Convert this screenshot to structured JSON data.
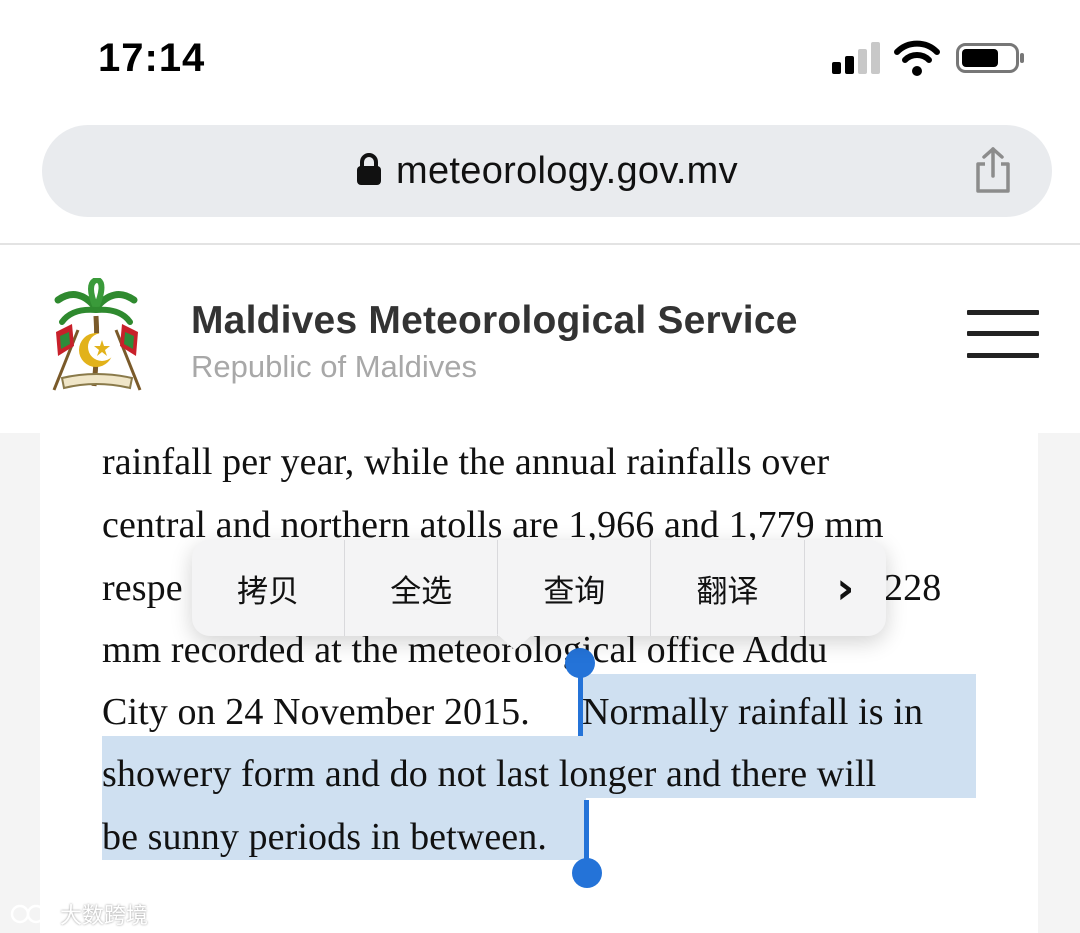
{
  "status_bar": {
    "time": "17:14",
    "icons": [
      "signal-icon",
      "wifi-icon",
      "battery-icon"
    ]
  },
  "browser": {
    "url": "meteorology.gov.mv",
    "icons": [
      "lock-icon",
      "share-icon"
    ]
  },
  "site": {
    "title": "Maldives Meteorological Service",
    "subtitle": "Republic of Maldives",
    "icons": [
      "emblem-logo",
      "menu-icon"
    ]
  },
  "article": {
    "lines": [
      "rainfall per year, while the annual rainfalls over",
      "central and northern atolls are 1,966 and 1,779 mm",
      "respe",
      "228",
      "mm recorded at the meteorological office Addu",
      "City on 24 November 2015. ",
      "Normally rainfall is in",
      "showery form and do not last longer and there will",
      "be sunny periods in between."
    ]
  },
  "context_menu": {
    "items": [
      "拷贝",
      "全选",
      "查询",
      "翻译"
    ],
    "more": "›"
  },
  "watermark": "大数跨境",
  "colors": {
    "selection": "#cfe0f1",
    "handle": "#2473d8",
    "url_bar": "#e9ebee"
  }
}
